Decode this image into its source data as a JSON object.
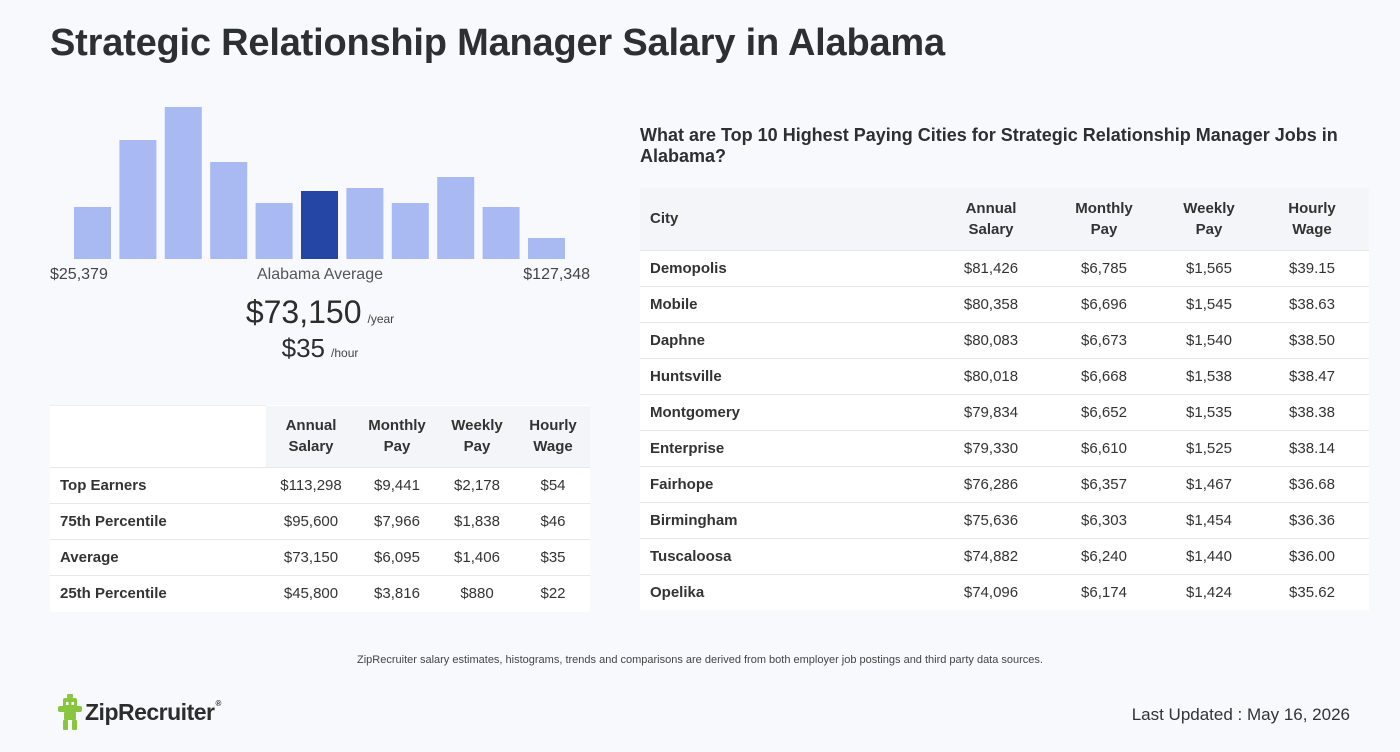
{
  "page": {
    "title": "Strategic Relationship Manager Salary in Alabama"
  },
  "histogram": {
    "min_label": "$25,379",
    "mid_label": "Alabama Average",
    "max_label": "$127,348",
    "bar_color": "#a9baf2",
    "highlight_color": "#2546a4"
  },
  "chart_data": {
    "type": "bar",
    "categories": [
      "1",
      "2",
      "3",
      "4",
      "5",
      "6",
      "7",
      "8",
      "9",
      "10",
      "11"
    ],
    "values": [
      52,
      119,
      152,
      97,
      56,
      68,
      71,
      56,
      82,
      52,
      21
    ],
    "highlight_index": 5,
    "xlabel": "",
    "ylabel": "",
    "ylim": [
      0,
      152
    ]
  },
  "average": {
    "annual": "$73,150",
    "annual_unit": "/year",
    "hourly": "$35",
    "hourly_unit": "/hour"
  },
  "percentile_table": {
    "headers": [
      [
        "Annual",
        "Salary"
      ],
      [
        "Monthly",
        "Pay"
      ],
      [
        "Weekly",
        "Pay"
      ],
      [
        "Hourly",
        "Wage"
      ]
    ],
    "rows": [
      {
        "label": "Top Earners",
        "annual": "$113,298",
        "monthly": "$9,441",
        "weekly": "$2,178",
        "hourly": "$54"
      },
      {
        "label": "75th Percentile",
        "annual": "$95,600",
        "monthly": "$7,966",
        "weekly": "$1,838",
        "hourly": "$46"
      },
      {
        "label": "Average",
        "annual": "$73,150",
        "monthly": "$6,095",
        "weekly": "$1,406",
        "hourly": "$35"
      },
      {
        "label": "25th Percentile",
        "annual": "$45,800",
        "monthly": "$3,816",
        "weekly": "$880",
        "hourly": "$22"
      }
    ]
  },
  "cities": {
    "heading": "What are Top 10 Highest Paying Cities for Strategic Relationship Manager Jobs in Alabama?",
    "city_header": "City",
    "headers": [
      [
        "Annual",
        "Salary"
      ],
      [
        "Monthly",
        "Pay"
      ],
      [
        "Weekly",
        "Pay"
      ],
      [
        "Hourly",
        "Wage"
      ]
    ],
    "rows": [
      {
        "city": "Demopolis",
        "annual": "$81,426",
        "monthly": "$6,785",
        "weekly": "$1,565",
        "hourly": "$39.15"
      },
      {
        "city": "Mobile",
        "annual": "$80,358",
        "monthly": "$6,696",
        "weekly": "$1,545",
        "hourly": "$38.63"
      },
      {
        "city": "Daphne",
        "annual": "$80,083",
        "monthly": "$6,673",
        "weekly": "$1,540",
        "hourly": "$38.50"
      },
      {
        "city": "Huntsville",
        "annual": "$80,018",
        "monthly": "$6,668",
        "weekly": "$1,538",
        "hourly": "$38.47"
      },
      {
        "city": "Montgomery",
        "annual": "$79,834",
        "monthly": "$6,652",
        "weekly": "$1,535",
        "hourly": "$38.38"
      },
      {
        "city": "Enterprise",
        "annual": "$79,330",
        "monthly": "$6,610",
        "weekly": "$1,525",
        "hourly": "$38.14"
      },
      {
        "city": "Fairhope",
        "annual": "$76,286",
        "monthly": "$6,357",
        "weekly": "$1,467",
        "hourly": "$36.68"
      },
      {
        "city": "Birmingham",
        "annual": "$75,636",
        "monthly": "$6,303",
        "weekly": "$1,454",
        "hourly": "$36.36"
      },
      {
        "city": "Tuscaloosa",
        "annual": "$74,882",
        "monthly": "$6,240",
        "weekly": "$1,440",
        "hourly": "$36.00"
      },
      {
        "city": "Opelika",
        "annual": "$74,096",
        "monthly": "$6,174",
        "weekly": "$1,424",
        "hourly": "$35.62"
      }
    ]
  },
  "footer": {
    "note": "ZipRecruiter salary estimates, histograms, trends and comparisons are derived from both employer job postings and third party data sources.",
    "logo_text": "ZipRecruiter",
    "logo_reg": "®",
    "logo_icon": "ziprecruiter-mascot-icon",
    "logo_color": "#8ac53f",
    "last_updated": "Last Updated : May 16, 2026"
  }
}
